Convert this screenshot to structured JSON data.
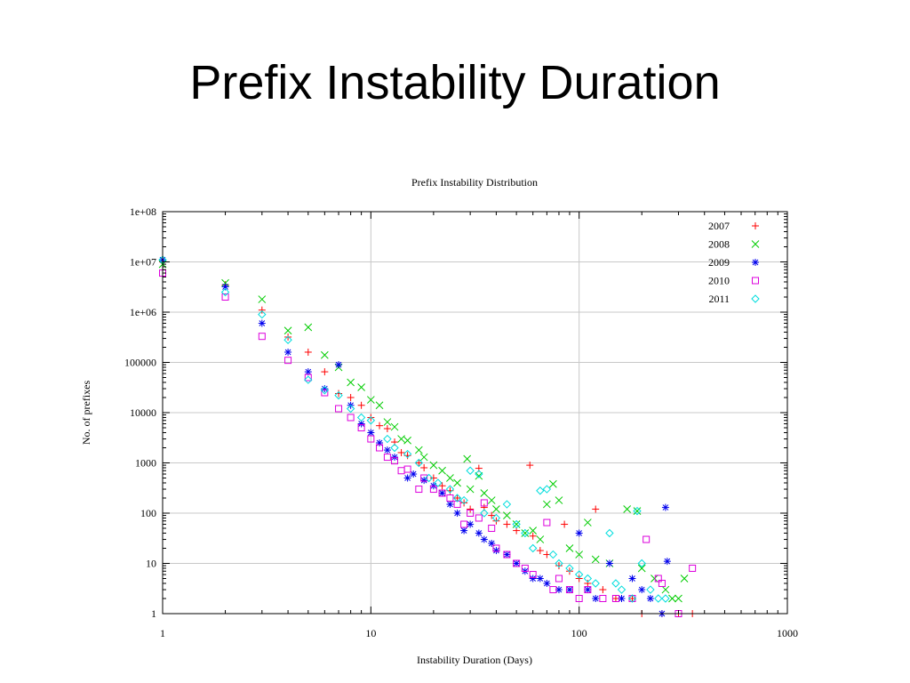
{
  "slide": {
    "title": "Prefix Instability Duration"
  },
  "colors": {
    "2007": "#ff0000",
    "2008": "#00cc00",
    "2009": "#0000ee",
    "2010": "#dd00dd",
    "2011": "#00dddd",
    "grid": "#c8c8c8",
    "axis": "#000000"
  },
  "chart_data": {
    "type": "scatter",
    "title": "Prefix Instability Distribution",
    "xlabel": "Instability Duration (Days)",
    "ylabel": "No. of prefixes",
    "x_scale": "log",
    "y_scale": "log",
    "xlim": [
      1,
      1000
    ],
    "ylim": [
      1,
      100000000
    ],
    "x_ticks": [
      "1",
      "10",
      "100",
      "1000"
    ],
    "y_ticks": [
      "1",
      "10",
      "100",
      "1000",
      "10000",
      "100000",
      "1e+06",
      "1e+07",
      "1e+08"
    ],
    "grid": true,
    "legend": "top-right",
    "series": [
      {
        "name": "2007",
        "marker": "plus",
        "points": [
          [
            1,
            10000000
          ],
          [
            2,
            3500000
          ],
          [
            3,
            1100000
          ],
          [
            4,
            320000
          ],
          [
            5,
            160000
          ],
          [
            6,
            65000
          ],
          [
            7,
            24000
          ],
          [
            8,
            20000
          ],
          [
            9,
            14000
          ],
          [
            10,
            8000
          ],
          [
            11,
            5500
          ],
          [
            12,
            4800
          ],
          [
            13,
            2600
          ],
          [
            14,
            1600
          ],
          [
            15,
            1400
          ],
          [
            17,
            1000
          ],
          [
            18,
            800
          ],
          [
            20,
            500
          ],
          [
            22,
            350
          ],
          [
            24,
            280
          ],
          [
            26,
            200
          ],
          [
            28,
            160
          ],
          [
            30,
            120
          ],
          [
            33,
            780
          ],
          [
            35,
            130
          ],
          [
            38,
            90
          ],
          [
            40,
            70
          ],
          [
            45,
            60
          ],
          [
            50,
            45
          ],
          [
            58,
            900
          ],
          [
            60,
            35
          ],
          [
            65,
            18
          ],
          [
            70,
            15
          ],
          [
            80,
            9
          ],
          [
            85,
            60
          ],
          [
            90,
            7
          ],
          [
            100,
            5
          ],
          [
            110,
            4
          ],
          [
            120,
            120
          ],
          [
            130,
            3
          ],
          [
            150,
            2
          ],
          [
            180,
            2
          ],
          [
            200,
            1
          ],
          [
            250,
            1
          ],
          [
            300,
            1
          ],
          [
            350,
            1
          ]
        ]
      },
      {
        "name": "2008",
        "marker": "cross",
        "points": [
          [
            1,
            9000000
          ],
          [
            2,
            3800000
          ],
          [
            3,
            1800000
          ],
          [
            4,
            430000
          ],
          [
            5,
            500000
          ],
          [
            6,
            140000
          ],
          [
            7,
            80000
          ],
          [
            8,
            40000
          ],
          [
            9,
            32000
          ],
          [
            10,
            18000
          ],
          [
            11,
            14000
          ],
          [
            12,
            6500
          ],
          [
            13,
            5200
          ],
          [
            14,
            3000
          ],
          [
            15,
            2800
          ],
          [
            17,
            1800
          ],
          [
            18,
            1300
          ],
          [
            20,
            900
          ],
          [
            22,
            700
          ],
          [
            24,
            500
          ],
          [
            26,
            400
          ],
          [
            29,
            1200
          ],
          [
            30,
            300
          ],
          [
            33,
            550
          ],
          [
            35,
            250
          ],
          [
            38,
            180
          ],
          [
            40,
            120
          ],
          [
            45,
            90
          ],
          [
            50,
            60
          ],
          [
            55,
            40
          ],
          [
            60,
            45
          ],
          [
            65,
            30
          ],
          [
            70,
            150
          ],
          [
            75,
            380
          ],
          [
            80,
            180
          ],
          [
            90,
            20
          ],
          [
            100,
            15
          ],
          [
            110,
            65
          ],
          [
            120,
            12
          ],
          [
            140,
            10
          ],
          [
            170,
            120
          ],
          [
            190,
            110
          ],
          [
            200,
            8
          ],
          [
            230,
            5
          ],
          [
            260,
            3
          ],
          [
            280,
            2
          ],
          [
            300,
            2
          ],
          [
            320,
            5
          ]
        ]
      },
      {
        "name": "2009",
        "marker": "star",
        "points": [
          [
            1,
            11000000
          ],
          [
            2,
            3200000
          ],
          [
            3,
            600000
          ],
          [
            4,
            160000
          ],
          [
            5,
            65000
          ],
          [
            6,
            30000
          ],
          [
            7,
            90000
          ],
          [
            8,
            14000
          ],
          [
            9,
            6000
          ],
          [
            10,
            4000
          ],
          [
            11,
            2500
          ],
          [
            12,
            1800
          ],
          [
            13,
            1300
          ],
          [
            15,
            500
          ],
          [
            16,
            600
          ],
          [
            18,
            450
          ],
          [
            20,
            350
          ],
          [
            22,
            250
          ],
          [
            24,
            150
          ],
          [
            26,
            100
          ],
          [
            28,
            45
          ],
          [
            30,
            60
          ],
          [
            33,
            40
          ],
          [
            35,
            30
          ],
          [
            38,
            25
          ],
          [
            40,
            18
          ],
          [
            45,
            15
          ],
          [
            50,
            10
          ],
          [
            55,
            7
          ],
          [
            60,
            5
          ],
          [
            65,
            5
          ],
          [
            70,
            4
          ],
          [
            80,
            3
          ],
          [
            90,
            3
          ],
          [
            100,
            40
          ],
          [
            110,
            3
          ],
          [
            120,
            2
          ],
          [
            140,
            10
          ],
          [
            160,
            2
          ],
          [
            180,
            5
          ],
          [
            200,
            3
          ],
          [
            220,
            2
          ],
          [
            250,
            1
          ],
          [
            260,
            130
          ],
          [
            265,
            11
          ]
        ]
      },
      {
        "name": "2010",
        "marker": "square",
        "points": [
          [
            1,
            6000000
          ],
          [
            2,
            2000000
          ],
          [
            3,
            330000
          ],
          [
            4,
            110000
          ],
          [
            5,
            50000
          ],
          [
            6,
            25000
          ],
          [
            7,
            12000
          ],
          [
            8,
            8000
          ],
          [
            9,
            5000
          ],
          [
            10,
            3000
          ],
          [
            11,
            2000
          ],
          [
            12,
            1300
          ],
          [
            13,
            1100
          ],
          [
            14,
            700
          ],
          [
            15,
            750
          ],
          [
            17,
            300
          ],
          [
            18,
            500
          ],
          [
            20,
            300
          ],
          [
            22,
            250
          ],
          [
            24,
            200
          ],
          [
            26,
            150
          ],
          [
            28,
            60
          ],
          [
            30,
            100
          ],
          [
            33,
            80
          ],
          [
            35,
            160
          ],
          [
            38,
            50
          ],
          [
            40,
            20
          ],
          [
            45,
            15
          ],
          [
            50,
            10
          ],
          [
            55,
            8
          ],
          [
            60,
            6
          ],
          [
            70,
            65
          ],
          [
            75,
            3
          ],
          [
            80,
            5
          ],
          [
            90,
            3
          ],
          [
            100,
            2
          ],
          [
            110,
            3
          ],
          [
            130,
            2
          ],
          [
            150,
            2
          ],
          [
            180,
            2
          ],
          [
            210,
            30
          ],
          [
            240,
            5
          ],
          [
            250,
            4
          ],
          [
            300,
            1
          ],
          [
            350,
            8
          ]
        ]
      },
      {
        "name": "2011",
        "marker": "diamond",
        "points": [
          [
            1,
            11000000
          ],
          [
            2,
            2500000
          ],
          [
            3,
            900000
          ],
          [
            4,
            280000
          ],
          [
            5,
            45000
          ],
          [
            6,
            28000
          ],
          [
            7,
            22000
          ],
          [
            8,
            12000
          ],
          [
            9,
            8000
          ],
          [
            10,
            7000
          ],
          [
            12,
            3000
          ],
          [
            13,
            2000
          ],
          [
            15,
            1500
          ],
          [
            17,
            1000
          ],
          [
            19,
            500
          ],
          [
            21,
            400
          ],
          [
            24,
            300
          ],
          [
            26,
            200
          ],
          [
            28,
            180
          ],
          [
            30,
            700
          ],
          [
            33,
            600
          ],
          [
            35,
            100
          ],
          [
            40,
            80
          ],
          [
            45,
            150
          ],
          [
            50,
            60
          ],
          [
            55,
            40
          ],
          [
            60,
            20
          ],
          [
            65,
            280
          ],
          [
            70,
            300
          ],
          [
            75,
            15
          ],
          [
            80,
            10
          ],
          [
            90,
            8
          ],
          [
            100,
            6
          ],
          [
            110,
            5
          ],
          [
            120,
            4
          ],
          [
            140,
            40
          ],
          [
            150,
            4
          ],
          [
            160,
            3
          ],
          [
            180,
            2
          ],
          [
            190,
            110
          ],
          [
            200,
            10
          ],
          [
            220,
            3
          ],
          [
            240,
            2
          ],
          [
            260,
            2
          ]
        ]
      }
    ]
  }
}
